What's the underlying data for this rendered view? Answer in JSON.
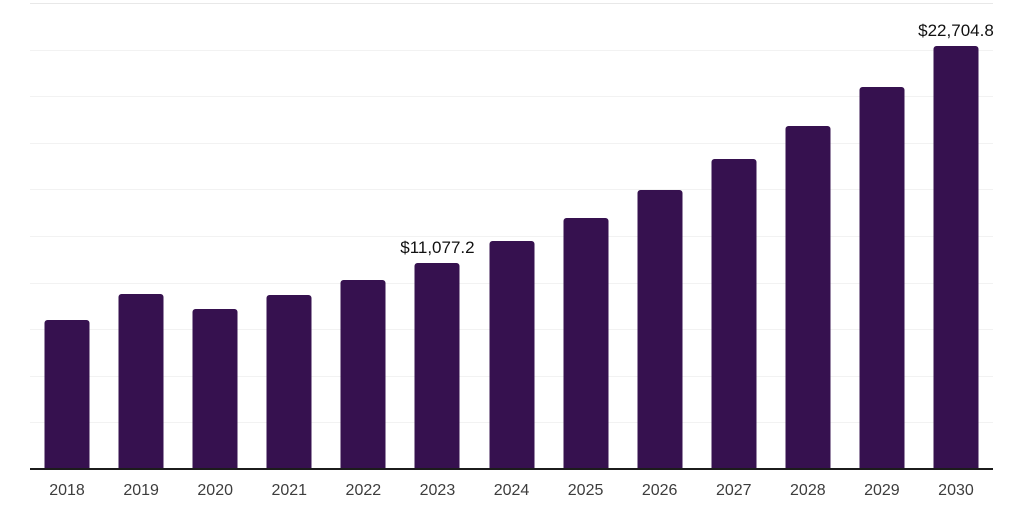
{
  "chart_data": {
    "type": "bar",
    "title": "",
    "xlabel": "",
    "ylabel": "",
    "categories": [
      "2018",
      "2019",
      "2020",
      "2021",
      "2022",
      "2023",
      "2024",
      "2025",
      "2026",
      "2027",
      "2028",
      "2029",
      "2030"
    ],
    "values": [
      8020,
      9400,
      8560,
      9340,
      10130,
      11077.2,
      12220,
      13490,
      14980,
      16630,
      18400,
      20520,
      22704.8
    ],
    "data_labels": {
      "2023": "$11,077.2",
      "2030": "$22,704.8"
    },
    "ylim": [
      0,
      25000
    ],
    "gridline_interval": 2500,
    "grid": "horizontal",
    "legend": "none",
    "y_axis_labels_visible": false,
    "colors": {
      "bar": "#36114f",
      "axis_line": "#1c1c1c",
      "gridline": "#f2f2f2",
      "gridline_top": "#e8e8e8",
      "value_label": "#111111",
      "tick_label": "#3d3d3d",
      "background": "#ffffff"
    }
  }
}
